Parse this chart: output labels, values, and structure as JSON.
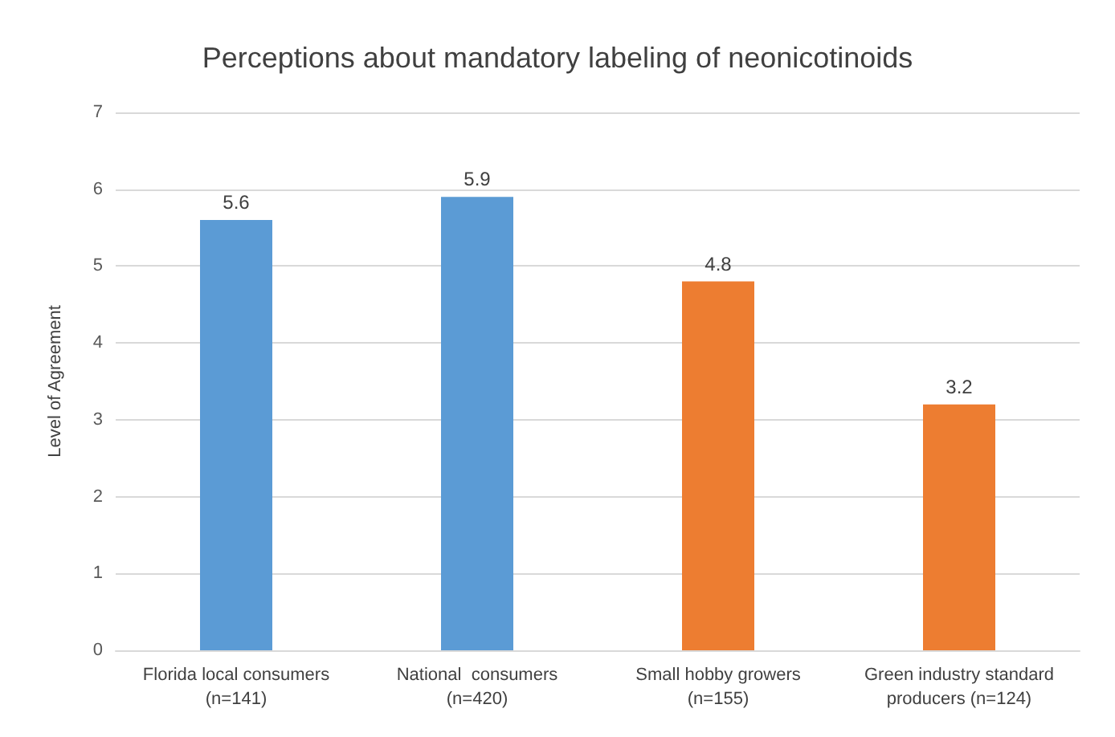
{
  "chart_data": {
    "type": "bar",
    "title": "Perceptions about mandatory labeling of neonicotinoids",
    "ylabel": "Level of Agreement",
    "categories": [
      "Florida local consumers\n(n=141)",
      "National  consumers\n(n=420)",
      "Small hobby growers\n(n=155)",
      "Green industry standard\nproducers (n=124)"
    ],
    "values": [
      5.6,
      5.9,
      4.8,
      3.2
    ],
    "colors": [
      "#5b9bd5",
      "#5b9bd5",
      "#ed7d31",
      "#ed7d31"
    ],
    "ylim": [
      0,
      7
    ],
    "yticks": [
      0,
      1,
      2,
      3,
      4,
      5,
      6,
      7
    ],
    "grid": "y",
    "data_labels": true
  }
}
